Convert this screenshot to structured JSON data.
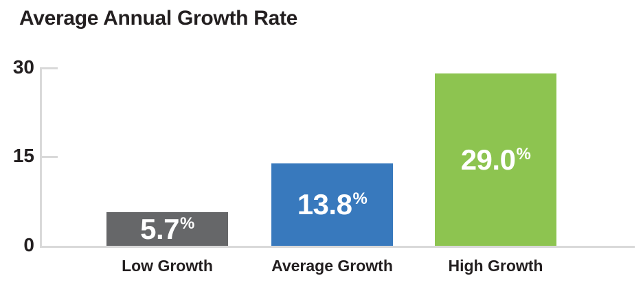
{
  "title": "Average Annual Growth Rate",
  "axis": {
    "ytick_labels": {
      "t30": "30",
      "t15": "15",
      "t0": "0"
    }
  },
  "colors": {
    "axis_line": "#d9d9d9",
    "text": "#231f20",
    "value_text": "#ffffff"
  },
  "chart_data": {
    "type": "bar",
    "title": "Average Annual Growth Rate",
    "categories": [
      "Low Growth",
      "Average Growth",
      "High Growth"
    ],
    "values": [
      5.7,
      13.8,
      29.0
    ],
    "value_labels": [
      "5.7%",
      "13.8%",
      "29.0%"
    ],
    "unit": "%",
    "xlabel": "",
    "ylabel": "",
    "ylim": [
      0,
      30
    ],
    "yticks": [
      0,
      15,
      30
    ],
    "grid": false,
    "legend": "none",
    "bars": [
      {
        "category": "Low Growth",
        "value": 5.7,
        "value_label": "5.7",
        "color": "#666769"
      },
      {
        "category": "Average Growth",
        "value": 13.8,
        "value_label": "13.8",
        "color": "#3879bd"
      },
      {
        "category": "High Growth",
        "value": 29.0,
        "value_label": "29.0",
        "color": "#8dc450"
      }
    ]
  }
}
